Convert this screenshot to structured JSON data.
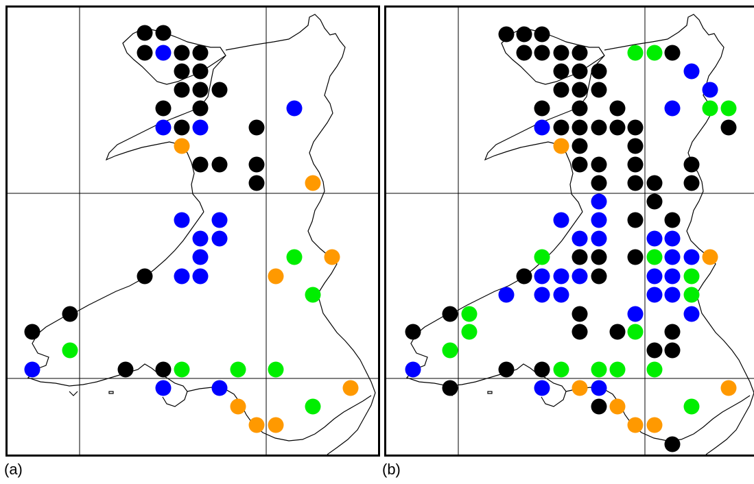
{
  "colors": {
    "black": "#000000",
    "blue": "#0000ff",
    "green": "#00ee00",
    "orange": "#ff9900"
  },
  "panels": [
    {
      "label": "(a)",
      "grid_x": [
        116,
        388
      ],
      "grid_y": [
        282,
        552
      ],
      "dots": [
        [
          211,
          48,
          "black"
        ],
        [
          238,
          48,
          "black"
        ],
        [
          211,
          77,
          "black"
        ],
        [
          238,
          77,
          "blue"
        ],
        [
          265,
          77,
          "black"
        ],
        [
          292,
          77,
          "black"
        ],
        [
          265,
          104,
          "black"
        ],
        [
          292,
          104,
          "black"
        ],
        [
          265,
          131,
          "black"
        ],
        [
          292,
          131,
          "black"
        ],
        [
          320,
          131,
          "black"
        ],
        [
          238,
          158,
          "black"
        ],
        [
          292,
          158,
          "black"
        ],
        [
          429,
          158,
          "blue"
        ],
        [
          238,
          186,
          "blue"
        ],
        [
          265,
          186,
          "black"
        ],
        [
          292,
          186,
          "blue"
        ],
        [
          374,
          186,
          "black"
        ],
        [
          265,
          213,
          "orange"
        ],
        [
          292,
          240,
          "black"
        ],
        [
          320,
          240,
          "black"
        ],
        [
          374,
          240,
          "black"
        ],
        [
          374,
          267,
          "black"
        ],
        [
          456,
          267,
          "orange"
        ],
        [
          265,
          321,
          "blue"
        ],
        [
          320,
          321,
          "blue"
        ],
        [
          292,
          348,
          "blue"
        ],
        [
          320,
          348,
          "blue"
        ],
        [
          292,
          375,
          "blue"
        ],
        [
          429,
          375,
          "green"
        ],
        [
          484,
          375,
          "orange"
        ],
        [
          211,
          403,
          "black"
        ],
        [
          265,
          403,
          "blue"
        ],
        [
          292,
          403,
          "blue"
        ],
        [
          402,
          403,
          "orange"
        ],
        [
          456,
          430,
          "green"
        ],
        [
          102,
          458,
          "black"
        ],
        [
          47,
          484,
          "black"
        ],
        [
          102,
          511,
          "green"
        ],
        [
          47,
          539,
          "blue"
        ],
        [
          183,
          539,
          "black"
        ],
        [
          238,
          539,
          "black"
        ],
        [
          265,
          539,
          "green"
        ],
        [
          347,
          539,
          "green"
        ],
        [
          402,
          539,
          "green"
        ],
        [
          238,
          566,
          "blue"
        ],
        [
          320,
          566,
          "blue"
        ],
        [
          511,
          566,
          "orange"
        ],
        [
          347,
          593,
          "orange"
        ],
        [
          456,
          593,
          "green"
        ],
        [
          374,
          620,
          "orange"
        ],
        [
          402,
          620,
          "orange"
        ]
      ]
    },
    {
      "label": "(b)",
      "grid_x": [
        668,
        940
      ],
      "grid_y": [
        282,
        552
      ],
      "dots": [
        [
          738,
          50,
          "black"
        ],
        [
          764,
          50,
          "black"
        ],
        [
          790,
          50,
          "black"
        ],
        [
          764,
          77,
          "black"
        ],
        [
          790,
          77,
          "black"
        ],
        [
          818,
          77,
          "black"
        ],
        [
          845,
          77,
          "black"
        ],
        [
          926,
          77,
          "green"
        ],
        [
          954,
          77,
          "green"
        ],
        [
          980,
          77,
          "black"
        ],
        [
          818,
          104,
          "black"
        ],
        [
          845,
          104,
          "black"
        ],
        [
          873,
          104,
          "black"
        ],
        [
          1008,
          104,
          "blue"
        ],
        [
          818,
          131,
          "black"
        ],
        [
          845,
          131,
          "black"
        ],
        [
          873,
          131,
          "black"
        ],
        [
          1035,
          131,
          "blue"
        ],
        [
          790,
          158,
          "black"
        ],
        [
          845,
          158,
          "black"
        ],
        [
          900,
          158,
          "black"
        ],
        [
          980,
          158,
          "blue"
        ],
        [
          1035,
          158,
          "green"
        ],
        [
          1062,
          158,
          "green"
        ],
        [
          790,
          186,
          "blue"
        ],
        [
          818,
          186,
          "black"
        ],
        [
          845,
          186,
          "black"
        ],
        [
          873,
          186,
          "black"
        ],
        [
          900,
          186,
          "black"
        ],
        [
          926,
          186,
          "black"
        ],
        [
          1062,
          186,
          "black"
        ],
        [
          818,
          213,
          "orange"
        ],
        [
          845,
          213,
          "black"
        ],
        [
          926,
          213,
          "black"
        ],
        [
          845,
          240,
          "black"
        ],
        [
          873,
          240,
          "black"
        ],
        [
          926,
          240,
          "black"
        ],
        [
          1008,
          240,
          "black"
        ],
        [
          873,
          267,
          "black"
        ],
        [
          926,
          267,
          "black"
        ],
        [
          954,
          267,
          "black"
        ],
        [
          1008,
          267,
          "black"
        ],
        [
          873,
          294,
          "blue"
        ],
        [
          954,
          294,
          "black"
        ],
        [
          818,
          321,
          "blue"
        ],
        [
          873,
          321,
          "blue"
        ],
        [
          926,
          321,
          "black"
        ],
        [
          980,
          321,
          "black"
        ],
        [
          845,
          348,
          "blue"
        ],
        [
          873,
          348,
          "blue"
        ],
        [
          954,
          348,
          "blue"
        ],
        [
          980,
          348,
          "blue"
        ],
        [
          790,
          375,
          "green"
        ],
        [
          845,
          375,
          "black"
        ],
        [
          873,
          375,
          "black"
        ],
        [
          926,
          375,
          "black"
        ],
        [
          954,
          375,
          "green"
        ],
        [
          980,
          375,
          "blue"
        ],
        [
          1008,
          375,
          "blue"
        ],
        [
          1035,
          375,
          "orange"
        ],
        [
          764,
          403,
          "black"
        ],
        [
          790,
          403,
          "blue"
        ],
        [
          818,
          403,
          "blue"
        ],
        [
          845,
          403,
          "blue"
        ],
        [
          873,
          403,
          "black"
        ],
        [
          954,
          403,
          "blue"
        ],
        [
          980,
          403,
          "blue"
        ],
        [
          1008,
          403,
          "green"
        ],
        [
          738,
          430,
          "blue"
        ],
        [
          790,
          430,
          "blue"
        ],
        [
          818,
          430,
          "blue"
        ],
        [
          954,
          430,
          "blue"
        ],
        [
          980,
          430,
          "blue"
        ],
        [
          1008,
          430,
          "green"
        ],
        [
          656,
          458,
          "black"
        ],
        [
          684,
          458,
          "green"
        ],
        [
          845,
          458,
          "black"
        ],
        [
          926,
          458,
          "blue"
        ],
        [
          1008,
          458,
          "blue"
        ],
        [
          602,
          484,
          "black"
        ],
        [
          684,
          484,
          "green"
        ],
        [
          845,
          484,
          "black"
        ],
        [
          900,
          484,
          "black"
        ],
        [
          926,
          484,
          "green"
        ],
        [
          980,
          484,
          "black"
        ],
        [
          656,
          511,
          "green"
        ],
        [
          954,
          511,
          "black"
        ],
        [
          980,
          511,
          "black"
        ],
        [
          602,
          539,
          "blue"
        ],
        [
          738,
          539,
          "black"
        ],
        [
          790,
          539,
          "black"
        ],
        [
          818,
          539,
          "green"
        ],
        [
          873,
          539,
          "green"
        ],
        [
          900,
          539,
          "green"
        ],
        [
          954,
          539,
          "green"
        ],
        [
          656,
          566,
          "black"
        ],
        [
          790,
          566,
          "blue"
        ],
        [
          845,
          566,
          "orange"
        ],
        [
          873,
          566,
          "blue"
        ],
        [
          1062,
          566,
          "orange"
        ],
        [
          873,
          593,
          "black"
        ],
        [
          900,
          593,
          "orange"
        ],
        [
          1008,
          593,
          "green"
        ],
        [
          926,
          620,
          "orange"
        ],
        [
          954,
          620,
          "orange"
        ],
        [
          980,
          648,
          "black"
        ]
      ]
    }
  ]
}
